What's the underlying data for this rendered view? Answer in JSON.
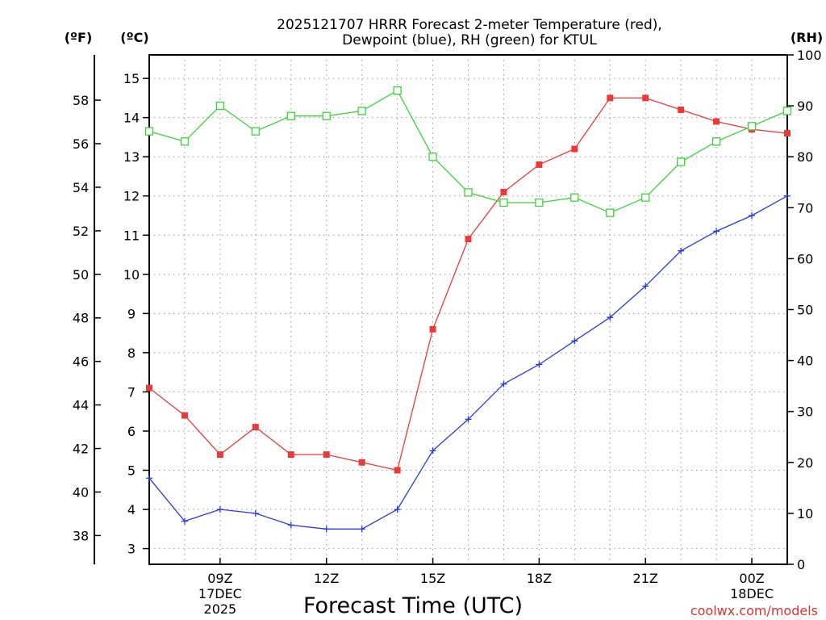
{
  "chart_data": {
    "type": "line",
    "title_line1": "2025121707 HRRR Forecast 2-meter Temperature (red),",
    "title_line2": "Dewpoint (blue), RH (green) for KTUL",
    "xlabel": "Forecast Time (UTC)",
    "unit_f": "(ºF)",
    "unit_c": "(ºC)",
    "unit_rh": "(RH)",
    "credit": "coolwx.com/models",
    "x_hours": [
      7,
      8,
      9,
      10,
      11,
      12,
      13,
      14,
      15,
      16,
      17,
      18,
      19,
      20,
      21,
      22,
      23,
      24,
      25
    ],
    "xlim": [
      7,
      25
    ],
    "ylim_c": [
      2.6,
      15.6
    ],
    "ylim_rh": [
      0,
      100
    ],
    "x_ticks": [
      {
        "hour": 9,
        "label": "09Z",
        "label2": "17DEC",
        "label3": "2025"
      },
      {
        "hour": 12,
        "label": "12Z",
        "label2": "",
        "label3": ""
      },
      {
        "hour": 15,
        "label": "15Z",
        "label2": "",
        "label3": ""
      },
      {
        "hour": 18,
        "label": "18Z",
        "label2": "",
        "label3": ""
      },
      {
        "hour": 21,
        "label": "21Z",
        "label2": "",
        "label3": ""
      },
      {
        "hour": 24,
        "label": "00Z",
        "label2": "18DEC",
        "label3": ""
      }
    ],
    "c_ticks": [
      3,
      4,
      5,
      6,
      7,
      8,
      9,
      10,
      11,
      12,
      13,
      14,
      15
    ],
    "f_ticks": [
      38,
      40,
      42,
      44,
      46,
      48,
      50,
      52,
      54,
      56,
      58
    ],
    "rh_ticks": [
      0,
      10,
      20,
      30,
      40,
      50,
      60,
      70,
      80,
      90,
      100
    ],
    "series": [
      {
        "name": "Temperature",
        "color": "#e83a3a",
        "marker": "filled-square",
        "axis": "c",
        "values": [
          7.1,
          6.4,
          5.4,
          6.1,
          5.4,
          5.4,
          5.2,
          5.0,
          8.6,
          10.9,
          12.1,
          12.8,
          13.2,
          14.5,
          14.5,
          14.2,
          13.9,
          13.7,
          13.6
        ]
      },
      {
        "name": "Dewpoint",
        "color": "#2a3adf",
        "marker": "plus",
        "axis": "c",
        "values": [
          4.8,
          3.7,
          4.0,
          3.9,
          3.6,
          3.5,
          3.5,
          4.0,
          5.5,
          6.3,
          7.2,
          7.7,
          8.3,
          8.9,
          9.7,
          10.6,
          11.1,
          11.5,
          12.0
        ]
      },
      {
        "name": "RH",
        "color": "#3ad43a",
        "marker": "open-square",
        "axis": "rh",
        "values": [
          85,
          83,
          90,
          85,
          88,
          88,
          89,
          93,
          80,
          73,
          71,
          71,
          72,
          69,
          72,
          79,
          83,
          86,
          89
        ]
      }
    ]
  }
}
